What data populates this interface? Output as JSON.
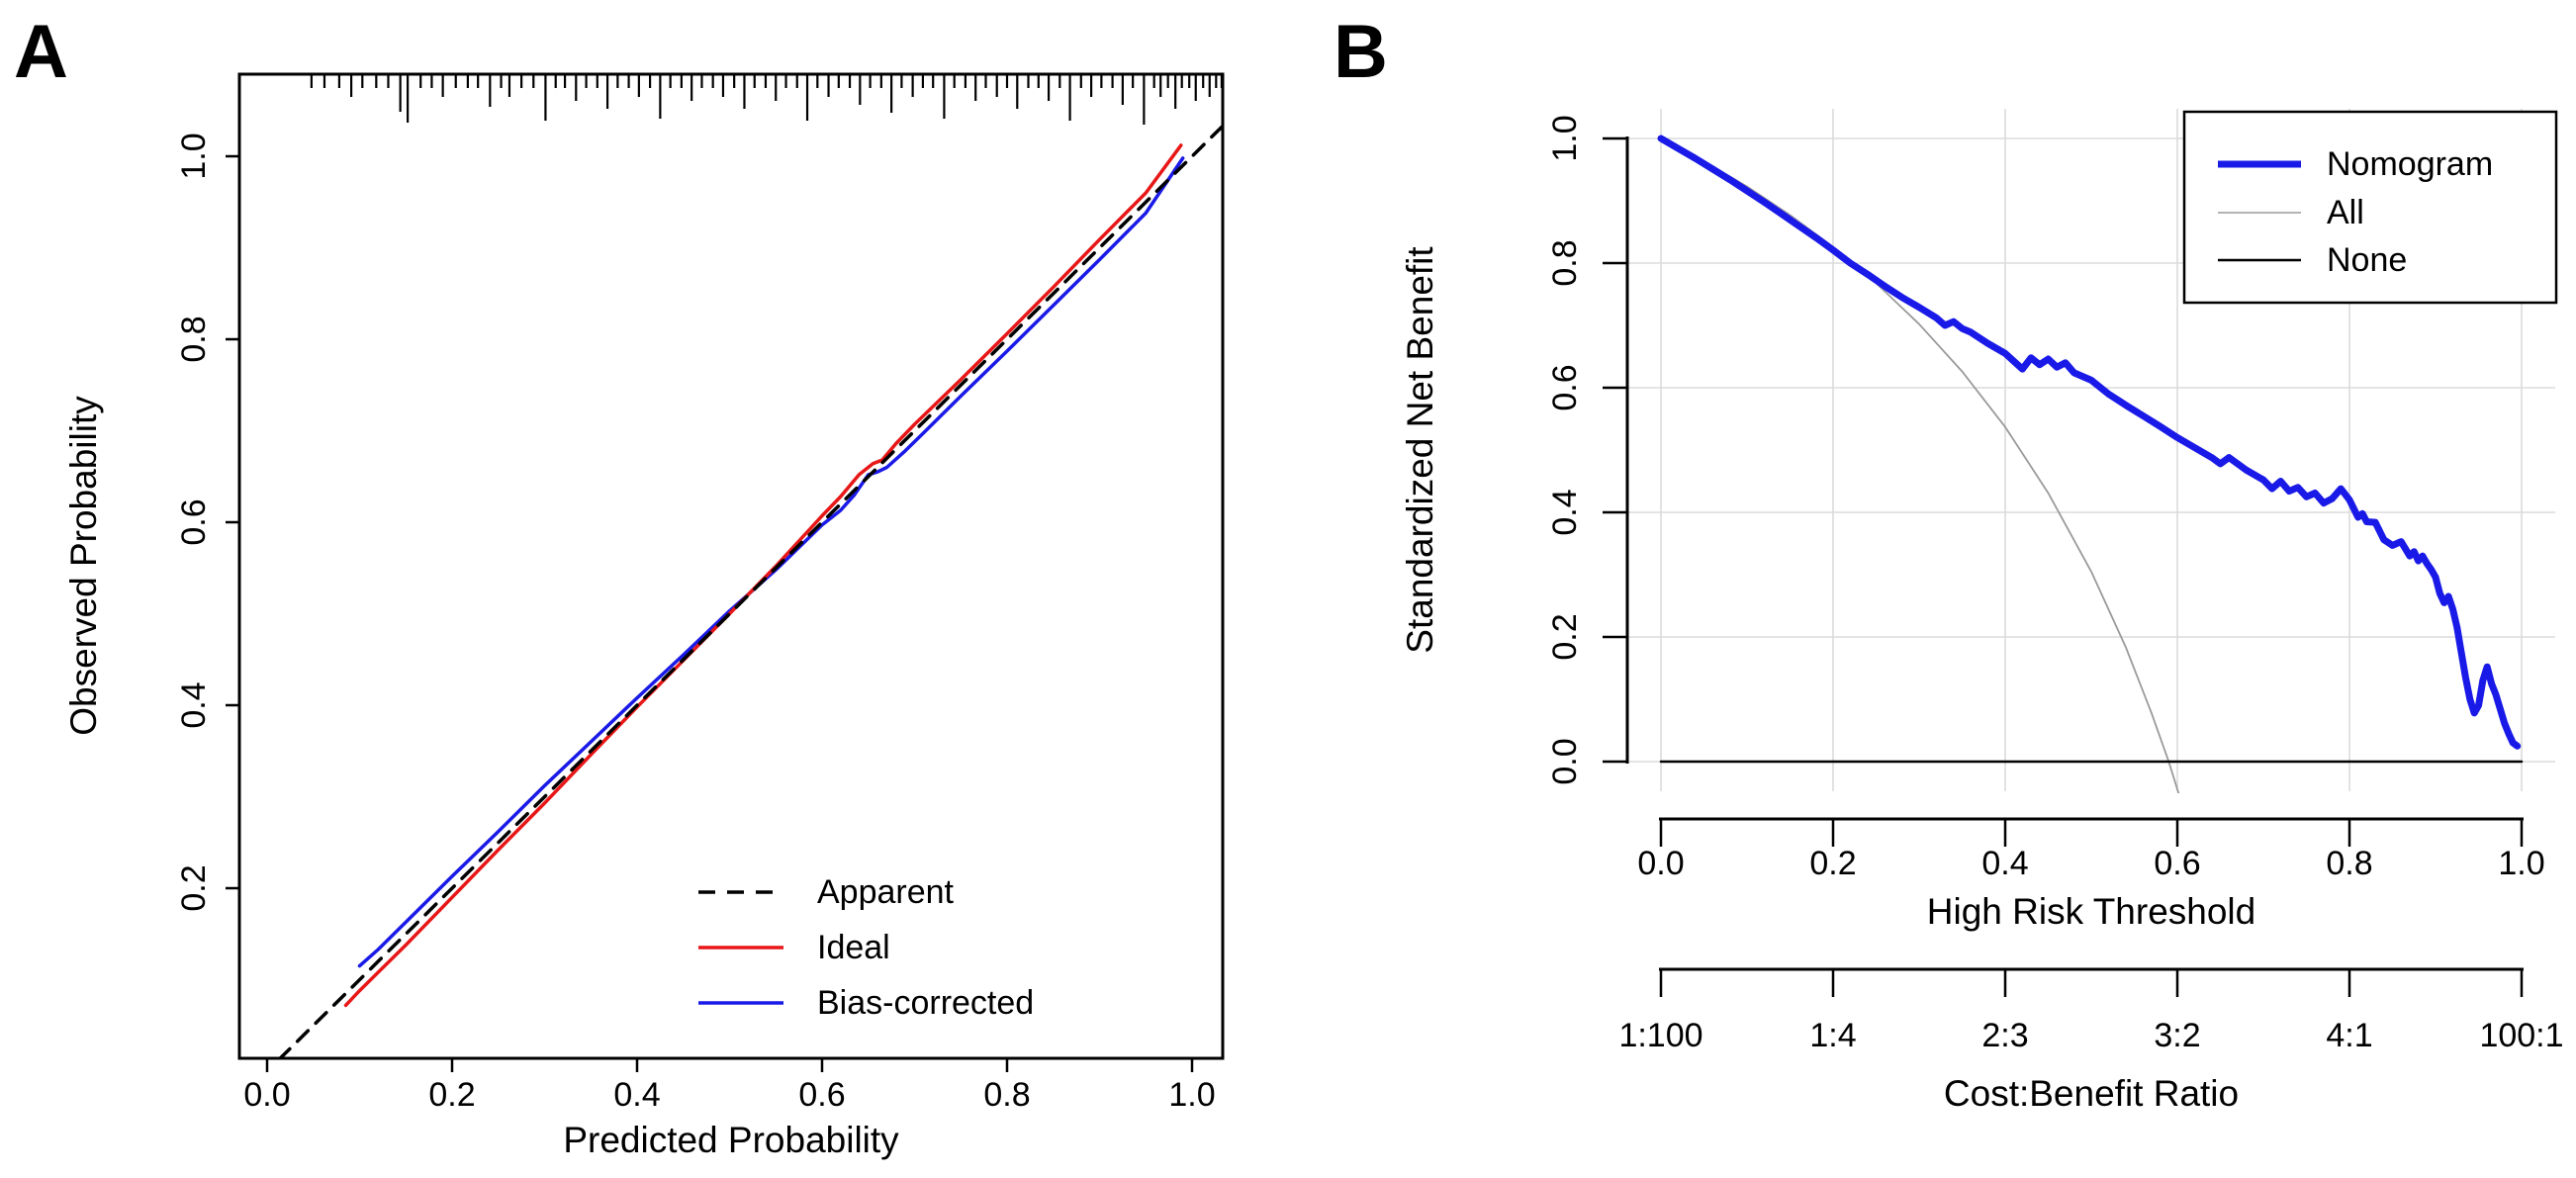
{
  "figure": {
    "background": "#ffffff"
  },
  "chart_data": [
    {
      "panel_label": "A",
      "type": "line",
      "title": "",
      "xlabel": "Predicted Probability",
      "ylabel": "Observed Probability",
      "xlim": [
        -0.03,
        1.035
      ],
      "ylim": [
        0.013,
        1.085
      ],
      "xticks": [
        0.0,
        0.2,
        0.4,
        0.6,
        0.8,
        1.0
      ],
      "xtick_labels": [
        "0.0",
        "0.2",
        "0.4",
        "0.6",
        "0.8",
        "1.0"
      ],
      "yticks": [
        0.2,
        0.4,
        0.6,
        0.8,
        1.0
      ],
      "ytick_labels": [
        "0.2",
        "0.4",
        "0.6",
        "0.8",
        "1.0"
      ],
      "grid": false,
      "legend_position": "bottom-right",
      "legend": [
        {
          "name": "Apparent",
          "color": "#000000",
          "style": "dashed",
          "width": 3.5
        },
        {
          "name": "Ideal",
          "color": "#e81717",
          "style": "solid",
          "width": 3.5
        },
        {
          "name": "Bias-corrected",
          "color": "#1a1ae8",
          "style": "solid",
          "width": 3.5
        }
      ],
      "series": [
        {
          "name": "Apparent",
          "color": "#000000",
          "dash": [
            15,
            11
          ],
          "width": 3.5,
          "x": [
            0.013,
            1.033
          ],
          "y": [
            0.013,
            1.033
          ]
        },
        {
          "name": "Ideal",
          "color": "#e81717",
          "dash": null,
          "width": 3.5,
          "x": [
            0.085,
            0.1,
            0.15,
            0.2,
            0.25,
            0.3,
            0.35,
            0.4,
            0.45,
            0.5,
            0.55,
            0.6,
            0.62,
            0.64,
            0.655,
            0.665,
            0.68,
            0.7,
            0.75,
            0.8,
            0.85,
            0.9,
            0.95,
            0.988
          ],
          "y": [
            0.072,
            0.088,
            0.138,
            0.19,
            0.242,
            0.293,
            0.346,
            0.398,
            0.449,
            0.5,
            0.552,
            0.607,
            0.628,
            0.652,
            0.664,
            0.668,
            0.686,
            0.707,
            0.756,
            0.806,
            0.857,
            0.909,
            0.96,
            1.012
          ]
        },
        {
          "name": "Bias-corrected",
          "color": "#1a1ae8",
          "dash": null,
          "width": 3.5,
          "x": [
            0.1,
            0.12,
            0.15,
            0.2,
            0.25,
            0.3,
            0.35,
            0.4,
            0.45,
            0.5,
            0.55,
            0.6,
            0.62,
            0.635,
            0.65,
            0.66,
            0.67,
            0.69,
            0.71,
            0.75,
            0.8,
            0.85,
            0.9,
            0.95,
            0.99
          ],
          "y": [
            0.115,
            0.133,
            0.163,
            0.213,
            0.262,
            0.312,
            0.36,
            0.408,
            0.455,
            0.503,
            0.548,
            0.597,
            0.613,
            0.63,
            0.652,
            0.655,
            0.66,
            0.678,
            0.698,
            0.738,
            0.787,
            0.837,
            0.887,
            0.938,
            0.998
          ]
        }
      ],
      "rug": [
        [
          0.048,
          13
        ],
        [
          0.062,
          13
        ],
        [
          0.078,
          13
        ],
        [
          0.091,
          22
        ],
        [
          0.103,
          13
        ],
        [
          0.118,
          13
        ],
        [
          0.131,
          13
        ],
        [
          0.144,
          37
        ],
        [
          0.152,
          48
        ],
        [
          0.166,
          13
        ],
        [
          0.178,
          13
        ],
        [
          0.19,
          22
        ],
        [
          0.204,
          13
        ],
        [
          0.217,
          13
        ],
        [
          0.228,
          13
        ],
        [
          0.241,
          32
        ],
        [
          0.253,
          13
        ],
        [
          0.262,
          22
        ],
        [
          0.275,
          13
        ],
        [
          0.288,
          13
        ],
        [
          0.301,
          46
        ],
        [
          0.312,
          13
        ],
        [
          0.322,
          13
        ],
        [
          0.334,
          26
        ],
        [
          0.345,
          13
        ],
        [
          0.357,
          13
        ],
        [
          0.368,
          34
        ],
        [
          0.379,
          13
        ],
        [
          0.391,
          13
        ],
        [
          0.402,
          22
        ],
        [
          0.414,
          13
        ],
        [
          0.425,
          44
        ],
        [
          0.436,
          13
        ],
        [
          0.448,
          13
        ],
        [
          0.459,
          26
        ],
        [
          0.47,
          13
        ],
        [
          0.482,
          13
        ],
        [
          0.493,
          22
        ],
        [
          0.505,
          13
        ],
        [
          0.516,
          34
        ],
        [
          0.527,
          13
        ],
        [
          0.539,
          13
        ],
        [
          0.55,
          26
        ],
        [
          0.561,
          13
        ],
        [
          0.573,
          13
        ],
        [
          0.584,
          46
        ],
        [
          0.595,
          13
        ],
        [
          0.607,
          22
        ],
        [
          0.618,
          13
        ],
        [
          0.63,
          13
        ],
        [
          0.641,
          30
        ],
        [
          0.652,
          13
        ],
        [
          0.664,
          13
        ],
        [
          0.675,
          38
        ],
        [
          0.686,
          13
        ],
        [
          0.698,
          22
        ],
        [
          0.709,
          13
        ],
        [
          0.72,
          13
        ],
        [
          0.732,
          44
        ],
        [
          0.743,
          13
        ],
        [
          0.755,
          13
        ],
        [
          0.766,
          26
        ],
        [
          0.777,
          13
        ],
        [
          0.789,
          22
        ],
        [
          0.8,
          13
        ],
        [
          0.811,
          34
        ],
        [
          0.823,
          13
        ],
        [
          0.834,
          13
        ],
        [
          0.845,
          26
        ],
        [
          0.857,
          13
        ],
        [
          0.868,
          46
        ],
        [
          0.88,
          13
        ],
        [
          0.891,
          22
        ],
        [
          0.902,
          13
        ],
        [
          0.914,
          13
        ],
        [
          0.925,
          30
        ],
        [
          0.936,
          13
        ],
        [
          0.948,
          50
        ],
        [
          0.959,
          13
        ],
        [
          0.966,
          22
        ],
        [
          0.974,
          13
        ],
        [
          0.982,
          34
        ],
        [
          0.989,
          13
        ],
        [
          0.997,
          13
        ],
        [
          1.004,
          26
        ],
        [
          1.012,
          13
        ],
        [
          1.019,
          22
        ],
        [
          1.026,
          13
        ],
        [
          1.032,
          13
        ]
      ]
    },
    {
      "panel_label": "B",
      "type": "line",
      "title": "",
      "xlabel": "High Risk Threshold",
      "ylabel": "Standardized Net Benefit",
      "x2label": "Cost:Benefit Ratio",
      "xlim": [
        -0.04,
        1.04
      ],
      "ylim": [
        -0.05,
        1.05
      ],
      "xticks": [
        0.0,
        0.2,
        0.4,
        0.6,
        0.8,
        1.0
      ],
      "xtick_labels": [
        "0.0",
        "0.2",
        "0.4",
        "0.6",
        "0.8",
        "1.0"
      ],
      "x2tick_labels": [
        "1:100",
        "1:4",
        "2:3",
        "3:2",
        "4:1",
        "100:1"
      ],
      "yticks": [
        0.0,
        0.2,
        0.4,
        0.6,
        0.8,
        1.0
      ],
      "ytick_labels": [
        "0.0",
        "0.2",
        "0.4",
        "0.6",
        "0.8",
        "1.0"
      ],
      "grid": {
        "show": true,
        "color": "#dbdbdb",
        "step": 0.2
      },
      "legend_position": "top-right",
      "legend": [
        {
          "name": "Nomogram",
          "color": "#1a1ae8",
          "style": "solid",
          "width": 7
        },
        {
          "name": "All",
          "color": "#b3b3b3",
          "style": "solid",
          "width": 2
        },
        {
          "name": "None",
          "color": "#000000",
          "style": "solid",
          "width": 2.5
        }
      ],
      "series": [
        {
          "name": "All",
          "color": "#9a9a9a",
          "dash": null,
          "width": 1.8,
          "x": [
            0.005,
            0.05,
            0.1,
            0.15,
            0.2,
            0.25,
            0.3,
            0.35,
            0.4,
            0.45,
            0.5,
            0.54,
            0.57,
            0.59,
            0.608
          ],
          "y": [
            0.997,
            0.963,
            0.923,
            0.877,
            0.826,
            0.768,
            0.702,
            0.626,
            0.537,
            0.431,
            0.305,
            0.184,
            0.078,
            0.0,
            -0.08
          ]
        },
        {
          "name": "None",
          "color": "#000000",
          "dash": null,
          "width": 2.5,
          "x": [
            0.0,
            1.0
          ],
          "y": [
            0.0,
            0.0
          ]
        },
        {
          "name": "Nomogram",
          "color": "#1a1ae8",
          "dash": null,
          "width": 7,
          "x": [
            0.0,
            0.02,
            0.04,
            0.06,
            0.08,
            0.1,
            0.12,
            0.14,
            0.16,
            0.18,
            0.2,
            0.22,
            0.24,
            0.26,
            0.28,
            0.3,
            0.32,
            0.33,
            0.34,
            0.35,
            0.36,
            0.38,
            0.4,
            0.42,
            0.43,
            0.44,
            0.45,
            0.46,
            0.47,
            0.48,
            0.5,
            0.52,
            0.54,
            0.56,
            0.58,
            0.6,
            0.62,
            0.64,
            0.65,
            0.66,
            0.68,
            0.7,
            0.71,
            0.72,
            0.73,
            0.74,
            0.75,
            0.76,
            0.77,
            0.78,
            0.79,
            0.8,
            0.81,
            0.815,
            0.82,
            0.83,
            0.84,
            0.85,
            0.86,
            0.87,
            0.875,
            0.88,
            0.885,
            0.89,
            0.895,
            0.9,
            0.905,
            0.91,
            0.915,
            0.92,
            0.925,
            0.93,
            0.935,
            0.94,
            0.945,
            0.95,
            0.955,
            0.96,
            0.965,
            0.97,
            0.975,
            0.98,
            0.985,
            0.99,
            0.995
          ],
          "y": [
            1.0,
            0.984,
            0.968,
            0.951,
            0.934,
            0.916,
            0.898,
            0.879,
            0.86,
            0.841,
            0.821,
            0.8,
            0.782,
            0.763,
            0.745,
            0.729,
            0.712,
            0.7,
            0.706,
            0.695,
            0.689,
            0.671,
            0.655,
            0.63,
            0.648,
            0.637,
            0.646,
            0.633,
            0.64,
            0.624,
            0.612,
            0.59,
            0.572,
            0.555,
            0.538,
            0.52,
            0.504,
            0.488,
            0.478,
            0.488,
            0.468,
            0.452,
            0.438,
            0.45,
            0.434,
            0.44,
            0.425,
            0.431,
            0.415,
            0.422,
            0.438,
            0.42,
            0.392,
            0.398,
            0.385,
            0.384,
            0.356,
            0.347,
            0.353,
            0.33,
            0.337,
            0.322,
            0.33,
            0.318,
            0.308,
            0.296,
            0.27,
            0.255,
            0.265,
            0.245,
            0.215,
            0.175,
            0.135,
            0.1,
            0.078,
            0.09,
            0.13,
            0.152,
            0.125,
            0.108,
            0.085,
            0.062,
            0.045,
            0.03,
            0.025
          ]
        }
      ],
      "annotations": {
        "all_curve_zero_crossing": 0.59
      }
    }
  ]
}
